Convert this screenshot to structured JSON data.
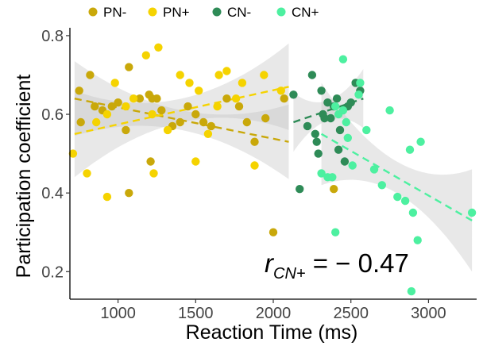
{
  "chart_data": {
    "type": "scatter",
    "xlabel": "Reaction Time (ms)",
    "ylabel": "Participation coefficient",
    "xlim": [
      690,
      3310
    ],
    "ylim": [
      0.13,
      0.82
    ],
    "xticks": [
      1000,
      1500,
      2000,
      2500,
      3000
    ],
    "yticks": [
      0.2,
      0.4,
      0.6,
      0.8
    ],
    "ytick_labels": [
      "0.2",
      "0.4",
      "0.6",
      "0.8"
    ],
    "grid": false,
    "legend_position": "top",
    "annotation": {
      "r": "r",
      "sub": "CN+",
      "eq": " = − 0.47"
    },
    "series": [
      {
        "name": "PN-",
        "color": "#c9a80a",
        "x": [
          750,
          820,
          850,
          900,
          960,
          1000,
          1050,
          1070,
          1140,
          1200,
          1220,
          1250,
          1280,
          1350,
          1400,
          1450,
          1500,
          1550,
          1600,
          1700,
          1780,
          1830,
          1880,
          1950,
          2000,
          2070,
          760,
          1070,
          1210,
          2390
        ],
        "y": [
          0.66,
          0.7,
          0.62,
          0.61,
          0.62,
          0.63,
          0.56,
          0.72,
          0.64,
          0.65,
          0.64,
          0.64,
          0.61,
          0.57,
          0.58,
          0.62,
          0.6,
          0.58,
          0.57,
          0.64,
          0.62,
          0.58,
          0.53,
          0.59,
          0.3,
          0.64,
          0.58,
          0.4,
          0.48,
          0.41
        ],
        "fit": {
          "x": [
            720,
            2100
          ],
          "y": [
            0.64,
            0.53
          ]
        }
      },
      {
        "name": "PN+",
        "color": "#f5d300",
        "x": [
          710,
          800,
          860,
          930,
          980,
          1050,
          1100,
          1180,
          1220,
          1260,
          1320,
          1400,
          1460,
          1520,
          1580,
          1650,
          1700,
          1760,
          1800,
          1880,
          1940,
          2050,
          1230,
          1500,
          930,
          1640
        ],
        "y": [
          0.5,
          0.45,
          0.58,
          0.39,
          0.68,
          0.62,
          0.64,
          0.75,
          0.6,
          0.77,
          0.56,
          0.7,
          0.68,
          0.66,
          0.55,
          0.7,
          0.71,
          0.64,
          0.68,
          0.47,
          0.7,
          0.66,
          0.45,
          0.48,
          0.6,
          0.62
        ],
        "fit": {
          "x": [
            720,
            2100
          ],
          "y": [
            0.55,
            0.67
          ]
        }
      },
      {
        "name": "CN-",
        "color": "#2e8b57",
        "x": [
          2130,
          2170,
          2220,
          2250,
          2270,
          2290,
          2310,
          2330,
          2350,
          2370,
          2390,
          2410,
          2430,
          2460,
          2480,
          2500,
          2530,
          2560,
          2280,
          2320,
          2420
        ],
        "y": [
          0.65,
          0.41,
          0.57,
          0.7,
          0.55,
          0.5,
          0.66,
          0.59,
          0.63,
          0.59,
          0.62,
          0.64,
          0.56,
          0.48,
          0.62,
          0.63,
          0.68,
          0.66,
          0.53,
          0.6,
          0.51
        ],
        "fit": {
          "x": [
            2130,
            2580
          ],
          "y": [
            0.58,
            0.64
          ]
        }
      },
      {
        "name": "CN+",
        "color": "#4df0a0",
        "x": [
          2310,
          2350,
          2380,
          2400,
          2420,
          2450,
          2480,
          2510,
          2550,
          2560,
          2600,
          2650,
          2700,
          2750,
          2800,
          2850,
          2880,
          2900,
          2930,
          2950,
          3280,
          2400,
          2450,
          2470,
          2890
        ],
        "y": [
          0.45,
          0.44,
          0.44,
          0.3,
          0.6,
          0.74,
          0.54,
          0.47,
          0.65,
          0.68,
          0.56,
          0.46,
          0.42,
          0.61,
          0.39,
          0.38,
          0.51,
          0.35,
          0.28,
          0.53,
          0.35,
          0.62,
          0.61,
          0.58,
          0.15
        ],
        "fit": {
          "x": [
            2310,
            3280
          ],
          "y": [
            0.55,
            0.33
          ]
        }
      }
    ]
  }
}
